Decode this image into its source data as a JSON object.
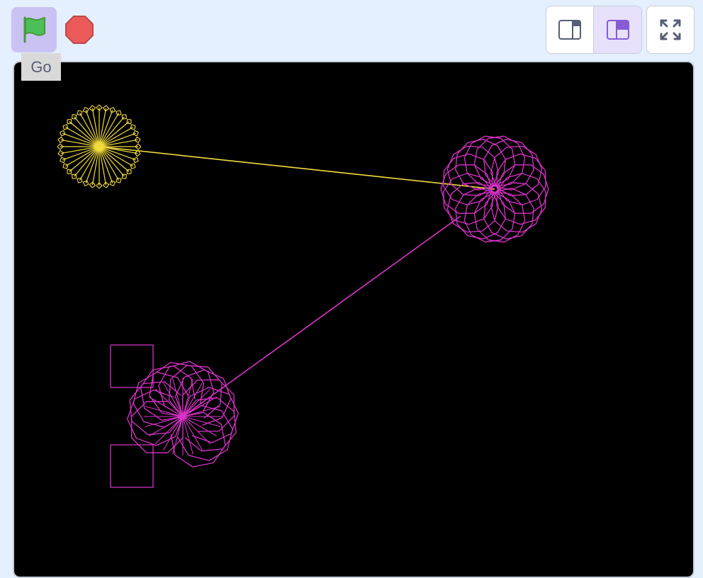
{
  "controls": {
    "green_flag_tooltip": "Go",
    "green_flag_icon": "green-flag-icon",
    "stop_icon": "stop-sign-icon"
  },
  "layout_buttons": {
    "small_stage_icon": "small-stage-icon",
    "large_stage_icon": "large-stage-icon",
    "active": "large-stage",
    "fullscreen_icon": "fullscreen-icon"
  },
  "colors": {
    "background": "#e5f0ff",
    "flag_button_bg": "#c9c2f2",
    "stage_bg": "#000000",
    "yellow_pen": "#f2dc3c",
    "magenta_pen": "#d932c8",
    "accent": "#855cd6"
  },
  "stage": {
    "drawings": [
      {
        "name": "yellow-circle-pattern",
        "color": "yellow_pen"
      },
      {
        "name": "magenta-circle-pattern",
        "color": "magenta_pen"
      },
      {
        "name": "magenta-spiral-pattern",
        "color": "magenta_pen"
      }
    ]
  }
}
